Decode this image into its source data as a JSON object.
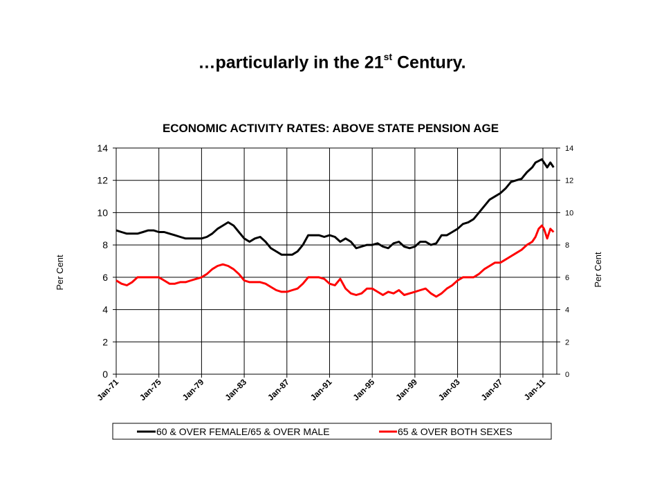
{
  "slide": {
    "title": "…particularly in the 21",
    "title_sup": "st",
    "title_tail": " Century."
  },
  "chart_data": {
    "type": "line",
    "title": "ECONOMIC ACTIVITY RATES: ABOVE STATE PENSION AGE",
    "ylabel": "Per Cent",
    "y2label": "Per Cent",
    "ylim": [
      0,
      14
    ],
    "yticks": [
      0,
      2,
      4,
      6,
      8,
      10,
      12,
      14
    ],
    "xlim": [
      1971,
      2012.3
    ],
    "xticks": [
      "Jan-71",
      "Jan-75",
      "Jan-79",
      "Jan-83",
      "Jan-87",
      "Jan-91",
      "Jan-95",
      "Jan-99",
      "Jan-03",
      "Jan-07",
      "Jan-11"
    ],
    "xtick_years": [
      1971,
      1975,
      1979,
      1983,
      1987,
      1991,
      1995,
      1999,
      2003,
      2007,
      2011
    ],
    "grid": true,
    "legend_position": "bottom",
    "series": [
      {
        "name": "60 & OVER FEMALE/65 & OVER MALE",
        "color": "#000000",
        "x": [
          1971,
          1971.5,
          1972,
          1972.5,
          1973,
          1973.5,
          1974,
          1974.5,
          1975,
          1975.5,
          1976,
          1976.5,
          1977,
          1977.5,
          1978,
          1978.5,
          1979,
          1979.5,
          1980,
          1980.5,
          1981,
          1981.5,
          1982,
          1982.5,
          1983,
          1983.5,
          1984,
          1984.5,
          1985,
          1985.5,
          1986,
          1986.5,
          1987,
          1987.5,
          1988,
          1988.5,
          1989,
          1989.5,
          1990,
          1990.5,
          1991,
          1991.5,
          1992,
          1992.5,
          1993,
          1993.5,
          1994,
          1994.5,
          1995,
          1995.5,
          1996,
          1996.5,
          1997,
          1997.5,
          1998,
          1998.5,
          1999,
          1999.5,
          2000,
          2000.5,
          2001,
          2001.5,
          2002,
          2002.5,
          2003,
          2003.5,
          2004,
          2004.5,
          2005,
          2005.5,
          2006,
          2006.5,
          2007,
          2007.5,
          2008,
          2008.5,
          2009,
          2009.5,
          2010,
          2010.3,
          2010.6,
          2010.9,
          2011.1,
          2011.4,
          2011.7,
          2012
        ],
        "y": [
          8.9,
          8.8,
          8.7,
          8.7,
          8.7,
          8.8,
          8.9,
          8.9,
          8.8,
          8.8,
          8.7,
          8.6,
          8.5,
          8.4,
          8.4,
          8.4,
          8.4,
          8.5,
          8.7,
          9.0,
          9.2,
          9.4,
          9.2,
          8.8,
          8.4,
          8.2,
          8.4,
          8.5,
          8.2,
          7.8,
          7.6,
          7.4,
          7.4,
          7.4,
          7.6,
          8.0,
          8.6,
          8.6,
          8.6,
          8.5,
          8.6,
          8.5,
          8.2,
          8.4,
          8.2,
          7.8,
          7.9,
          8.0,
          8.0,
          8.1,
          7.9,
          7.8,
          8.1,
          8.2,
          7.9,
          7.8,
          7.9,
          8.2,
          8.2,
          8.0,
          8.1,
          8.6,
          8.6,
          8.8,
          9.0,
          9.3,
          9.4,
          9.6,
          10.0,
          10.4,
          10.8,
          11.0,
          11.2,
          11.5,
          11.9,
          12.0,
          12.1,
          12.5,
          12.8,
          13.1,
          13.2,
          13.3,
          13.1,
          12.8,
          13.1,
          12.8
        ]
      },
      {
        "name": "65 & OVER BOTH SEXES",
        "color": "#ff0000",
        "x": [
          1971,
          1971.5,
          1972,
          1972.5,
          1973,
          1973.5,
          1974,
          1974.5,
          1975,
          1975.5,
          1976,
          1976.5,
          1977,
          1977.5,
          1978,
          1978.5,
          1979,
          1979.5,
          1980,
          1980.5,
          1981,
          1981.5,
          1982,
          1982.5,
          1983,
          1983.5,
          1984,
          1984.5,
          1985,
          1985.5,
          1986,
          1986.5,
          1987,
          1987.5,
          1988,
          1988.5,
          1989,
          1989.5,
          1990,
          1990.5,
          1991,
          1991.5,
          1992,
          1992.5,
          1993,
          1993.5,
          1994,
          1994.5,
          1995,
          1995.5,
          1996,
          1996.5,
          1997,
          1997.5,
          1998,
          1998.5,
          1999,
          1999.5,
          2000,
          2000.5,
          2001,
          2001.5,
          2002,
          2002.5,
          2003,
          2003.5,
          2004,
          2004.5,
          2005,
          2005.5,
          2006,
          2006.5,
          2007,
          2007.5,
          2008,
          2008.5,
          2009,
          2009.5,
          2010,
          2010.3,
          2010.6,
          2010.9,
          2011.1,
          2011.4,
          2011.7,
          2012
        ],
        "y": [
          5.8,
          5.6,
          5.5,
          5.7,
          6.0,
          6.0,
          6.0,
          6.0,
          6.0,
          5.8,
          5.6,
          5.6,
          5.7,
          5.7,
          5.8,
          5.9,
          6.0,
          6.2,
          6.5,
          6.7,
          6.8,
          6.7,
          6.5,
          6.2,
          5.8,
          5.7,
          5.7,
          5.7,
          5.6,
          5.4,
          5.2,
          5.1,
          5.1,
          5.2,
          5.3,
          5.6,
          6.0,
          6.0,
          6.0,
          5.9,
          5.6,
          5.5,
          5.9,
          5.3,
          5.0,
          4.9,
          5.0,
          5.3,
          5.3,
          5.1,
          4.9,
          5.1,
          5.0,
          5.2,
          4.9,
          5.0,
          5.1,
          5.2,
          5.3,
          5.0,
          4.8,
          5.0,
          5.3,
          5.5,
          5.8,
          6.0,
          6.0,
          6.0,
          6.2,
          6.5,
          6.7,
          6.9,
          6.9,
          7.1,
          7.3,
          7.5,
          7.7,
          8.0,
          8.2,
          8.5,
          9.0,
          9.2,
          9.0,
          8.4,
          9.0,
          8.8
        ]
      }
    ]
  }
}
